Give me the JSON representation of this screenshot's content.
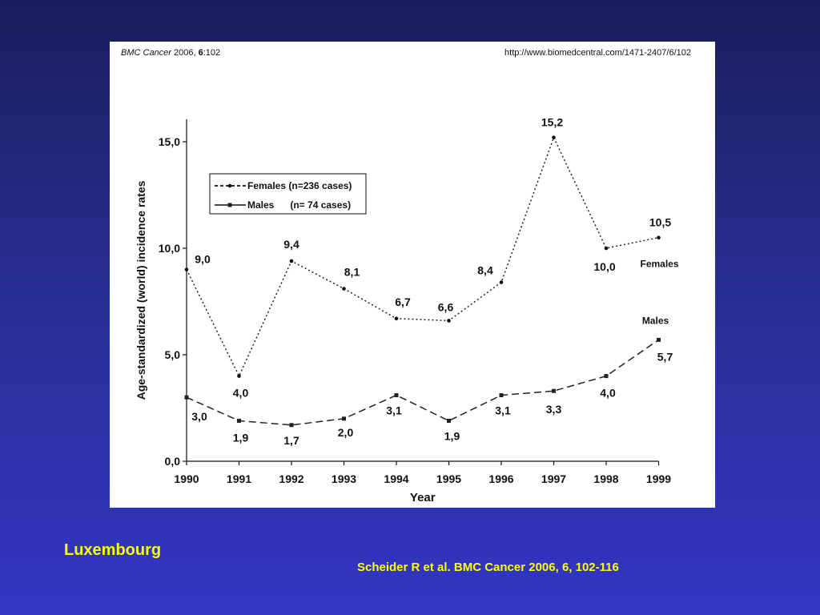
{
  "header": {
    "journal": "BMC Cancer",
    "year_issue": " 2006, ",
    "volume": "6",
    "article": ":102",
    "url": "http://www.biomedcentral.com/1471-2407/6/102"
  },
  "chart_data": {
    "type": "line",
    "xlabel": "Year",
    "ylabel": "Age-standardized (world) incidence rates",
    "x": [
      "1990",
      "1991",
      "1992",
      "1993",
      "1994",
      "1995",
      "1996",
      "1997",
      "1998",
      "1999"
    ],
    "ylim": [
      0,
      15
    ],
    "yticks": [
      "0,0",
      "5,0",
      "10,0",
      "15,0"
    ],
    "ytick_values": [
      0,
      5,
      10,
      15
    ],
    "grid": false,
    "legend_position": "top-left",
    "series": [
      {
        "name": "Females (n=236 cases)",
        "end_label": "Females",
        "style": "dotted",
        "values": [
          9.0,
          4.0,
          9.4,
          8.1,
          6.7,
          6.6,
          8.4,
          15.2,
          10.0,
          10.5
        ],
        "labels": [
          "9,0",
          "4,0",
          "9,4",
          "8,1",
          "6,7",
          "6,6",
          "8,4",
          "15,2",
          "10,0",
          "10,5"
        ]
      },
      {
        "name": "Males      (n= 74 cases)",
        "end_label": "Males",
        "style": "dashed",
        "values": [
          3.0,
          1.9,
          1.7,
          2.0,
          3.1,
          1.9,
          3.1,
          3.3,
          4.0,
          5.7
        ],
        "labels": [
          "3,0",
          "1,9",
          "1,7",
          "2,0",
          "3,1",
          "1,9",
          "3,1",
          "3,3",
          "4,0",
          "5,7"
        ]
      }
    ]
  },
  "captions": {
    "country": "Luxembourg",
    "citation": "Scheider R et al. BMC Cancer 2006, 6, 102-116"
  }
}
